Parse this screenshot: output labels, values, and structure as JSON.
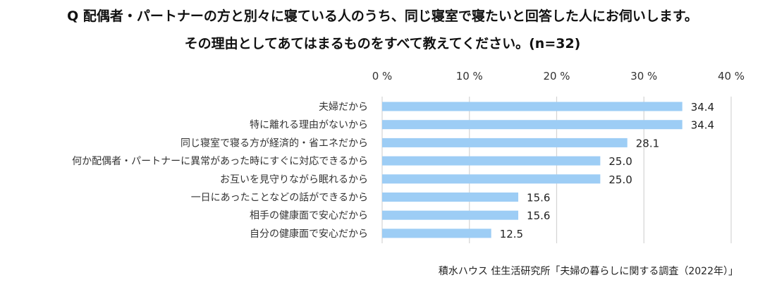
{
  "title_line1": "Q 配偶者・パートナーの方と別々に寝ている人のうち、同じ寝室で寝たいと回答した人にお伺いします。",
  "title_line2": "その理由としてあてはまるものをすべて教えてください。(n=32)",
  "source": "積水ハウス 住生活研究所「夫婦の暮らしに関する調査（2022年）」",
  "chart_data": {
    "type": "bar",
    "orientation": "horizontal",
    "categories": [
      "夫婦だから",
      "特に離れる理由がないから",
      "同じ寝室で寝る方が経済的・省エネだから",
      "何か配偶者・パートナーに異常があった時にすぐに対応できるから",
      "お互いを見守りながら眠れるから",
      "一日にあったことなどの話ができるから",
      "相手の健康面で安心だから",
      "自分の健康面で安心だから"
    ],
    "values": [
      34.4,
      34.4,
      28.1,
      25.0,
      25.0,
      15.6,
      15.6,
      12.5
    ],
    "value_labels": [
      "34.4",
      "34.4",
      "28.1",
      "25.0",
      "25.0",
      "15.6",
      "15.6",
      "12.5"
    ],
    "xlim": [
      0,
      40
    ],
    "ticks": [
      0,
      10,
      20,
      30,
      40
    ],
    "tick_labels": [
      "0 %",
      "10 %",
      "20 %",
      "30 %",
      "40 %"
    ],
    "axis_position": "top",
    "grid": true,
    "bar_color": "#9dcdf5",
    "grid_color": "#d4d4d4"
  }
}
